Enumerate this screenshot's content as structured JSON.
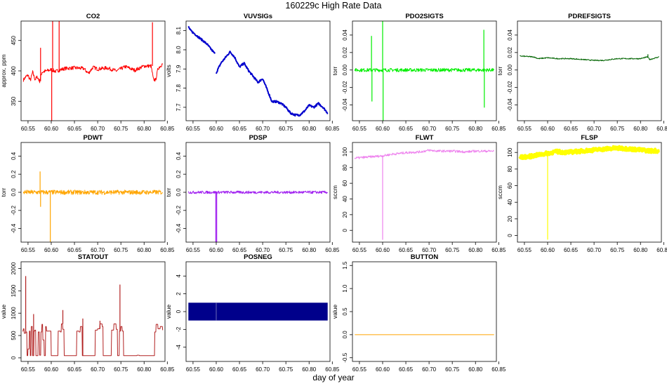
{
  "page_title": "160229c   High Rate Data",
  "x_axis_label": "day of year",
  "chart_data": [
    {
      "type": "line",
      "title": "CO2",
      "ylabel": "approx. ppm",
      "color": "#ff0000",
      "xlim": [
        60.535,
        60.845
      ],
      "ylim": [
        318,
        482
      ],
      "yticks": [
        350,
        400,
        450
      ],
      "xticks": [
        60.55,
        60.6,
        60.65,
        60.7,
        60.75,
        60.8,
        60.85
      ],
      "series": [
        {
          "x": [
            60.54,
            60.545,
            60.55,
            60.555,
            60.56,
            60.565,
            60.57,
            60.575,
            60.58,
            60.59,
            60.6,
            60.61,
            60.62,
            60.63,
            60.65,
            60.67,
            60.68,
            60.69,
            60.7,
            60.72,
            60.74,
            60.76,
            60.78,
            60.8,
            60.815,
            60.82,
            60.825,
            60.83,
            60.835,
            60.84
          ],
          "y": [
            385,
            390,
            393,
            384,
            398,
            386,
            390,
            383,
            398,
            400,
            402,
            399,
            402,
            404,
            405,
            404,
            396,
            406,
            403,
            405,
            400,
            407,
            401,
            408,
            408,
            386,
            385,
            404,
            408,
            412
          ]
        }
      ],
      "spikes": [
        {
          "x": 60.577,
          "y": 438
        },
        {
          "x": 60.601,
          "y": 318
        },
        {
          "x": 60.603,
          "y": 482
        },
        {
          "x": 60.617,
          "y": 482
        },
        {
          "x": 60.818,
          "y": 480
        }
      ],
      "noise": 3
    },
    {
      "type": "line",
      "title": "VUVSIGs",
      "ylabel": "volts",
      "color": "#0000cd",
      "xlim": [
        60.535,
        60.845
      ],
      "ylim": [
        7.63,
        8.15
      ],
      "yticks": [
        7.7,
        7.8,
        7.9,
        8.0,
        8.1
      ],
      "xticks": [
        60.55,
        60.6,
        60.65,
        60.7,
        60.75,
        60.8,
        60.85
      ],
      "series": [
        {
          "x": [
            60.54,
            60.545,
            60.55,
            60.56,
            60.57,
            60.58,
            60.59,
            60.597
          ],
          "y": [
            8.12,
            8.1,
            8.09,
            8.07,
            8.05,
            8.03,
            8.0,
            7.98
          ]
        },
        {
          "x": [
            60.6,
            60.61,
            60.62,
            60.63,
            60.64,
            60.65,
            60.66,
            60.67,
            60.68,
            60.69,
            60.7,
            60.71,
            60.72,
            60.73,
            60.74,
            60.75,
            60.76,
            60.77,
            60.78,
            60.79,
            60.8,
            60.81,
            60.82,
            60.83,
            60.84
          ],
          "y": [
            7.88,
            7.93,
            7.96,
            7.99,
            7.96,
            7.91,
            7.93,
            7.89,
            7.86,
            7.83,
            7.85,
            7.79,
            7.73,
            7.73,
            7.72,
            7.7,
            7.67,
            7.66,
            7.66,
            7.68,
            7.71,
            7.7,
            7.72,
            7.7,
            7.67
          ]
        }
      ],
      "spikes": [],
      "noise": 0.005
    },
    {
      "type": "line",
      "title": "PDO2SIGTS",
      "ylabel": "torr",
      "color": "#00ee00",
      "xlim": [
        60.535,
        60.845
      ],
      "ylim": [
        -0.058,
        0.056
      ],
      "yticks": [
        -0.04,
        -0.02,
        0.0,
        0.02,
        0.04
      ],
      "xticks": [
        60.55,
        60.6,
        60.65,
        60.7,
        60.75,
        60.8,
        60.85
      ],
      "series": [
        {
          "x": [
            60.54,
            60.84
          ],
          "y": [
            0.0,
            0.0
          ]
        }
      ],
      "spikes": [
        {
          "x": 60.576,
          "y": 0.039
        },
        {
          "x": 60.577,
          "y": -0.036
        },
        {
          "x": 60.6,
          "y": 0.056
        },
        {
          "x": 60.601,
          "y": -0.058
        },
        {
          "x": 60.818,
          "y": 0.046
        },
        {
          "x": 60.819,
          "y": -0.043
        }
      ],
      "noise": 0.002
    },
    {
      "type": "line",
      "title": "PDREFSIGTS",
      "ylabel": "torr",
      "color": "#006400",
      "xlim": [
        60.535,
        60.845
      ],
      "ylim": [
        -0.058,
        0.056
      ],
      "yticks": [
        -0.04,
        -0.02,
        0.0,
        0.02,
        0.04
      ],
      "xticks": [
        60.55,
        60.6,
        60.65,
        60.7,
        60.75,
        60.8,
        60.85
      ],
      "series": [
        {
          "x": [
            60.54,
            60.57,
            60.58,
            60.6,
            60.62,
            60.65,
            60.7,
            60.72,
            60.75,
            60.78,
            60.8,
            60.815,
            60.82,
            60.84
          ],
          "y": [
            0.016,
            0.015,
            0.013,
            0.014,
            0.013,
            0.013,
            0.011,
            0.011,
            0.013,
            0.013,
            0.013,
            0.015,
            0.012,
            0.015
          ]
        }
      ],
      "spikes": [
        {
          "x": 60.816,
          "y": 0.018
        }
      ],
      "noise": 0.0006
    },
    {
      "type": "line",
      "title": "PDWT",
      "ylabel": "torr",
      "color": "#ffa500",
      "xlim": [
        60.535,
        60.845
      ],
      "ylim": [
        -0.55,
        0.55
      ],
      "yticks": [
        -0.4,
        -0.2,
        0.0,
        0.2,
        0.4
      ],
      "xticks": [
        60.55,
        60.6,
        60.65,
        60.7,
        60.75,
        60.8,
        60.85
      ],
      "series": [
        {
          "x": [
            60.54,
            60.84
          ],
          "y": [
            0.0,
            0.0
          ]
        }
      ],
      "spikes": [
        {
          "x": 60.576,
          "y": 0.23
        },
        {
          "x": 60.577,
          "y": -0.16
        },
        {
          "x": 60.598,
          "y": -0.55
        }
      ],
      "noise": 0.025
    },
    {
      "type": "line",
      "title": "PDSP",
      "ylabel": "torr",
      "color": "#a020f0",
      "xlim": [
        60.535,
        60.845
      ],
      "ylim": [
        -0.55,
        0.55
      ],
      "yticks": [
        -0.4,
        -0.2,
        0.0,
        0.2,
        0.4
      ],
      "xticks": [
        60.55,
        60.6,
        60.65,
        60.7,
        60.75,
        60.8,
        60.85
      ],
      "series": [
        {
          "x": [
            60.54,
            60.84
          ],
          "y": [
            0.0,
            0.0
          ]
        }
      ],
      "spikes": [
        {
          "x": 60.599,
          "y": -0.55
        },
        {
          "x": 60.601,
          "y": -0.55
        }
      ],
      "noise": 0.015
    },
    {
      "type": "line",
      "title": "FLWT",
      "ylabel": "sccm",
      "color": "#ee82ee",
      "xlim": [
        60.535,
        60.845
      ],
      "ylim": [
        -15,
        112
      ],
      "yticks": [
        0,
        20,
        40,
        60,
        80,
        100
      ],
      "xticks": [
        60.55,
        60.6,
        60.65,
        60.7,
        60.75,
        60.8,
        60.85
      ],
      "series": [
        {
          "x": [
            60.54,
            60.56,
            60.58,
            60.6,
            60.62,
            60.65,
            60.68,
            60.7,
            60.72,
            60.75,
            60.78,
            60.8,
            60.82,
            60.84
          ],
          "y": [
            92,
            93,
            94,
            95,
            97,
            99,
            100,
            102,
            101,
            101,
            100,
            101,
            101,
            101
          ]
        }
      ],
      "spikes": [
        {
          "x": 60.6,
          "y": -12
        }
      ],
      "noise": 1.5
    },
    {
      "type": "line",
      "title": "FLSP",
      "ylabel": "sccm",
      "color": "#ffff00",
      "xlim": [
        60.535,
        60.845
      ],
      "ylim": [
        -8,
        112
      ],
      "yticks": [
        0,
        20,
        40,
        60,
        80,
        100
      ],
      "xticks": [
        60.55,
        60.6,
        60.65,
        60.7,
        60.75,
        60.8,
        60.85
      ],
      "series": [
        {
          "x": [
            60.54,
            60.56,
            60.58,
            60.6,
            60.62,
            60.64,
            60.66,
            60.68,
            60.7,
            60.72,
            60.74,
            60.76,
            60.78,
            60.8,
            60.82,
            60.84
          ],
          "y": [
            94,
            95,
            97,
            99,
            101,
            100,
            101,
            102,
            103,
            104,
            105,
            105,
            104,
            103,
            102,
            102
          ]
        }
      ],
      "spikes": [
        {
          "x": 60.6,
          "y": -5
        }
      ],
      "noise": 2.2
    },
    {
      "type": "line",
      "title": "STATOUT",
      "ylabel": "value",
      "color": "#b22222",
      "xlim": [
        60.535,
        60.845
      ],
      "ylim": [
        -80,
        2150
      ],
      "yticks": [
        0,
        500,
        1000,
        1500,
        2000
      ],
      "xticks": [
        60.55,
        60.6,
        60.65,
        60.7,
        60.75,
        60.8,
        60.85
      ],
      "series": [
        {
          "x": [
            60.538,
            60.54,
            60.542,
            60.545,
            60.548,
            60.55,
            60.553,
            60.555,
            60.557,
            60.56,
            60.563,
            60.565,
            60.567,
            60.57,
            60.572,
            60.575,
            60.578,
            60.58,
            60.582,
            60.585,
            60.588,
            60.59,
            60.6,
            60.61,
            60.615,
            60.62,
            60.622,
            60.625,
            60.628,
            60.632,
            60.64,
            60.65,
            60.655,
            60.66,
            60.663,
            60.667,
            60.67,
            60.68,
            60.69,
            60.695,
            60.7,
            60.705,
            60.71,
            60.712,
            60.72,
            60.73,
            60.735,
            60.74,
            60.743,
            60.747,
            60.75,
            60.753,
            60.756,
            60.76,
            60.77,
            60.775,
            60.78,
            60.785,
            60.79,
            60.8,
            60.81,
            60.82,
            60.823,
            60.826,
            60.83,
            60.835,
            60.84
          ],
          "y": [
            600,
            650,
            550,
            580,
            50,
            200,
            600,
            50,
            700,
            50,
            600,
            620,
            50,
            50,
            580,
            60,
            580,
            750,
            400,
            50,
            700,
            600,
            50,
            50,
            600,
            580,
            760,
            640,
            50,
            50,
            50,
            50,
            600,
            580,
            700,
            50,
            50,
            50,
            50,
            620,
            650,
            760,
            700,
            50,
            50,
            620,
            760,
            640,
            50,
            600,
            700,
            600,
            50,
            50,
            50,
            50,
            50,
            60,
            50,
            50,
            50,
            50,
            580,
            750,
            650,
            700,
            620
          ]
        }
      ],
      "spikes": [
        {
          "x": 60.545,
          "y": 1830
        },
        {
          "x": 60.748,
          "y": 1640
        },
        {
          "x": 60.562,
          "y": 980
        },
        {
          "x": 60.625,
          "y": 1070
        },
        {
          "x": 60.668,
          "y": 880
        },
        {
          "x": 60.705,
          "y": 830
        }
      ],
      "noise": 0,
      "step": true
    },
    {
      "type": "area",
      "title": "POSNEG",
      "ylabel": "value",
      "color": "#00008b",
      "xlim": [
        60.535,
        60.845
      ],
      "ylim": [
        -5.6,
        5.6
      ],
      "yticks": [
        -4,
        -2,
        0,
        2,
        4
      ],
      "xticks": [
        60.55,
        60.6,
        60.65,
        60.7,
        60.75,
        60.8,
        60.85
      ],
      "band": {
        "x": [
          60.54,
          60.84
        ],
        "low": -1,
        "high": 1,
        "gap": 60.6
      }
    },
    {
      "type": "line",
      "title": "BUTTON",
      "ylabel": "value",
      "color": "#ffa500",
      "xlim": [
        60.535,
        60.845
      ],
      "ylim": [
        -0.58,
        1.58
      ],
      "yticks": [
        -0.5,
        0.0,
        0.5,
        1.0,
        1.5
      ],
      "xticks": [
        60.55,
        60.6,
        60.65,
        60.7,
        60.75,
        60.8,
        60.85
      ],
      "series": [
        {
          "x": [
            60.54,
            60.84
          ],
          "y": [
            0,
            0
          ]
        }
      ],
      "spikes": [],
      "noise": 0
    }
  ]
}
